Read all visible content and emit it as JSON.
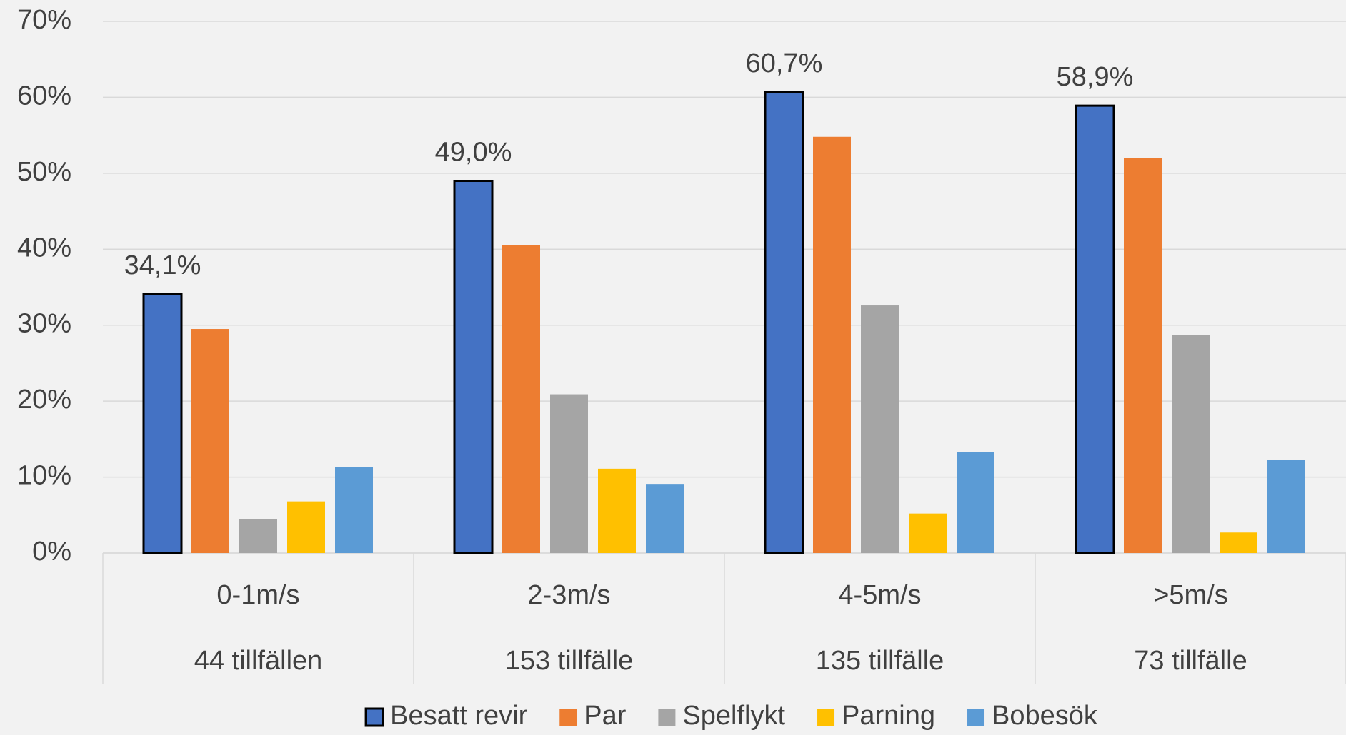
{
  "chart_data": {
    "type": "bar",
    "categories": [
      "0-1m/s",
      "2-3m/s",
      "4-5m/s",
      ">5m/s"
    ],
    "category_sublabels": [
      "44 tillfällen",
      "153 tillfälle",
      "135 tillfälle",
      "73 tillfälle"
    ],
    "series": [
      {
        "name": "Besatt revir",
        "color": "#4472c4",
        "values": [
          34.1,
          49.0,
          60.7,
          58.9
        ],
        "value_labels": [
          "34,1%",
          "49,0%",
          "60,7%",
          "58,9%"
        ]
      },
      {
        "name": "Par",
        "color": "#ed7d31",
        "values": [
          29.5,
          40.5,
          54.8,
          52.0
        ]
      },
      {
        "name": "Spelflykt",
        "color": "#a5a5a5",
        "values": [
          4.5,
          20.9,
          32.6,
          28.7
        ]
      },
      {
        "name": "Parning",
        "color": "#ffc000",
        "values": [
          6.8,
          11.1,
          5.2,
          2.7
        ]
      },
      {
        "name": "Bobesök",
        "color": "#5b9bd5",
        "values": [
          11.3,
          9.1,
          13.3,
          12.3
        ]
      }
    ],
    "ylim": [
      0,
      70
    ],
    "yticks": [
      {
        "value": 0,
        "label": "0%"
      },
      {
        "value": 10,
        "label": "10%"
      },
      {
        "value": 20,
        "label": "20%"
      },
      {
        "value": 30,
        "label": "30%"
      },
      {
        "value": 40,
        "label": "40%"
      },
      {
        "value": 50,
        "label": "50%"
      },
      {
        "value": 60,
        "label": "60%"
      },
      {
        "value": 70,
        "label": "70%"
      }
    ],
    "grid": true,
    "legend": "bottom"
  }
}
